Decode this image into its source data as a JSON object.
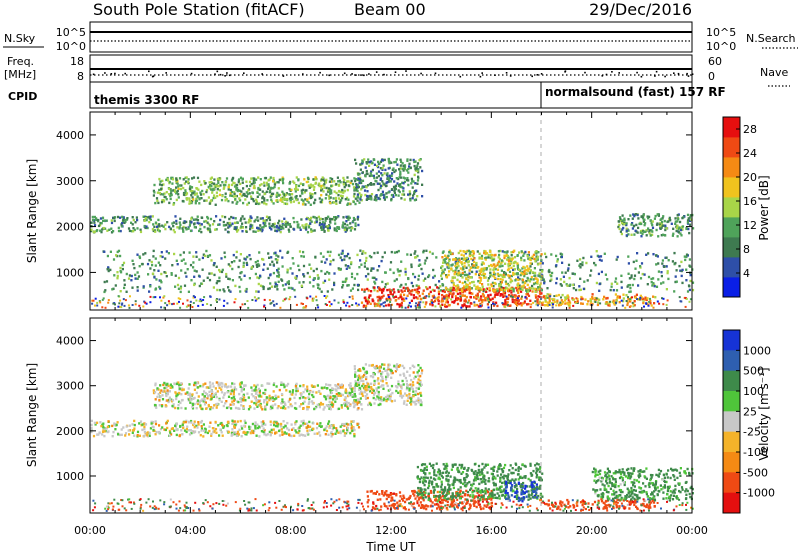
{
  "header": {
    "station": "South Pole Station (fitACF)",
    "beam": "Beam 00",
    "date": "29/Dec/2016"
  },
  "top_panel": {
    "left_label": "N.Sky",
    "right_label": "N.Search",
    "tick_high_left": "10^5",
    "tick_low_left": "10^0",
    "tick_high_right": "10^5",
    "tick_low_right": "10^0"
  },
  "freq_panel": {
    "label_top": "Freq.",
    "label_unit": "[MHz]",
    "tick_high_left": "18",
    "tick_low_left": "8",
    "right_label": "Nave",
    "tick_high_right": "60",
    "tick_low_right": "0"
  },
  "cpid": {
    "label": "CPID",
    "segment1": "themis 3300 RF",
    "segment2": "normalsound (fast) 157 RF"
  },
  "colors": {
    "power": [
      "#0a1fe6",
      "#2e4fa8",
      "#3e7a50",
      "#4fa35a",
      "#a8d548",
      "#f0c31e",
      "#f58a14",
      "#ef4a14",
      "#e60f0f"
    ],
    "velocity": [
      "#e40f0f",
      "#ef4a14",
      "#f58a14",
      "#f4b32a",
      "#c8c8c8",
      "#4fc53a",
      "#3e8a4a",
      "#2e5fb0",
      "#1633d6"
    ]
  },
  "chart_data": [
    {
      "type": "heatmap",
      "name": "Power",
      "title": "",
      "xlabel": "",
      "ylabel": "Slant Range [km]",
      "xlim": [
        "00:00",
        "24:00"
      ],
      "ylim": [
        180,
        4500
      ],
      "x_ticks": [
        "00:00",
        "04:00",
        "08:00",
        "12:00",
        "16:00",
        "20:00",
        "00:00"
      ],
      "y_ticks": [
        1000,
        2000,
        3000,
        4000
      ],
      "colorbar_label": "Power [dB]",
      "colorbar_ticks": [
        4,
        8,
        12,
        16,
        20,
        24,
        28
      ],
      "colorbar_range": [
        0,
        30
      ],
      "features": [
        {
          "start_h": 0.0,
          "end_h": 10.7,
          "range_min": 1900,
          "range_max": 2250,
          "power": 10
        },
        {
          "start_h": 2.5,
          "end_h": 10.8,
          "range_min": 2500,
          "range_max": 3100,
          "power": 12
        },
        {
          "start_h": 10.5,
          "end_h": 13.2,
          "range_min": 2600,
          "range_max": 3500,
          "power": 9
        },
        {
          "start_h": 0.5,
          "end_h": 24.0,
          "range_min": 600,
          "range_max": 1500,
          "power": 10
        },
        {
          "start_h": 10.8,
          "end_h": 18.0,
          "range_min": 280,
          "range_max": 700,
          "power": 26
        },
        {
          "start_h": 18.0,
          "end_h": 22.5,
          "range_min": 300,
          "range_max": 550,
          "power": 20
        },
        {
          "start_h": 14.0,
          "end_h": 18.0,
          "range_min": 600,
          "range_max": 1500,
          "power": 16
        },
        {
          "start_h": 21.0,
          "end_h": 24.0,
          "range_min": 1800,
          "range_max": 2300,
          "power": 10
        }
      ]
    },
    {
      "type": "heatmap",
      "name": "Velocity",
      "title": "",
      "xlabel": "Time UT",
      "ylabel": "Slant Range [km]",
      "xlim": [
        "00:00",
        "24:00"
      ],
      "ylim": [
        180,
        4500
      ],
      "x_ticks": [
        "00:00",
        "04:00",
        "08:00",
        "12:00",
        "16:00",
        "20:00",
        "00:00"
      ],
      "y_ticks": [
        1000,
        2000,
        3000,
        4000
      ],
      "colorbar_label": "Velocity [m s⁻¹]",
      "colorbar_ticks": [
        1000,
        500,
        100,
        25,
        -25,
        -100,
        -500,
        -1000
      ],
      "features": [
        {
          "start_h": 0.0,
          "end_h": 10.7,
          "range_min": 1900,
          "range_max": 2250,
          "velocity": 0
        },
        {
          "start_h": 2.5,
          "end_h": 10.8,
          "range_min": 2500,
          "range_max": 3100,
          "velocity": 0
        },
        {
          "start_h": 10.5,
          "end_h": 13.2,
          "range_min": 2600,
          "range_max": 3500,
          "velocity": 0
        },
        {
          "start_h": 11.0,
          "end_h": 16.0,
          "range_min": 280,
          "range_max": 700,
          "velocity": -300
        },
        {
          "start_h": 13.0,
          "end_h": 18.0,
          "range_min": 500,
          "range_max": 1300,
          "velocity": 200
        },
        {
          "start_h": 16.5,
          "end_h": 17.8,
          "range_min": 450,
          "range_max": 900,
          "velocity": 800
        },
        {
          "start_h": 18.0,
          "end_h": 22.5,
          "range_min": 300,
          "range_max": 500,
          "velocity": -300
        },
        {
          "start_h": 20.0,
          "end_h": 24.0,
          "range_min": 500,
          "range_max": 1200,
          "velocity": 150
        }
      ]
    }
  ]
}
